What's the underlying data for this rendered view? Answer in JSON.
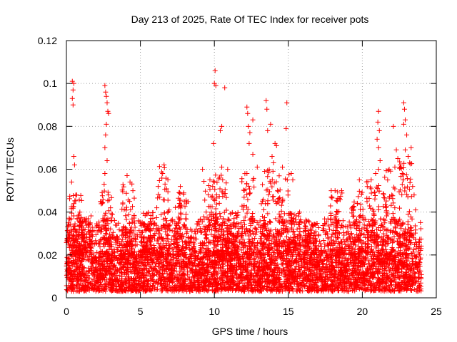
{
  "chart_data": {
    "type": "scatter",
    "title": "Day 213 of 2025, Rate Of TEC Index for receiver pots",
    "xlabel": "GPS time / hours",
    "ylabel": "ROTI / TECUs",
    "xlim": [
      0,
      25
    ],
    "ylim": [
      0,
      0.12
    ],
    "xticks": [
      0,
      5,
      10,
      15,
      20,
      25
    ],
    "xtick_labels": [
      "0",
      "5",
      "10",
      "15",
      "20",
      "25"
    ],
    "yticks": [
      0,
      0.02,
      0.04,
      0.06,
      0.08,
      0.1,
      0.12
    ],
    "ytick_labels": [
      "0",
      "0.02",
      "0.04",
      "0.06",
      "0.08",
      "0.1",
      "0.12"
    ],
    "grid": true,
    "marker": "+",
    "marker_color": "#ff0000",
    "series": [
      {
        "name": "ROTI",
        "baseline_range": [
          0.003,
          0.03
        ],
        "x_range": [
          0,
          24
        ],
        "notable_points": [
          {
            "x": 0.4,
            "y": 0.101
          },
          {
            "x": 0.5,
            "y": 0.1
          },
          {
            "x": 0.45,
            "y": 0.097
          },
          {
            "x": 0.4,
            "y": 0.093
          },
          {
            "x": 0.45,
            "y": 0.09
          },
          {
            "x": 0.5,
            "y": 0.066
          },
          {
            "x": 0.55,
            "y": 0.062
          },
          {
            "x": 0.35,
            "y": 0.054
          },
          {
            "x": 0.7,
            "y": 0.048
          },
          {
            "x": 2.6,
            "y": 0.099
          },
          {
            "x": 2.65,
            "y": 0.096
          },
          {
            "x": 2.7,
            "y": 0.094
          },
          {
            "x": 2.75,
            "y": 0.091
          },
          {
            "x": 2.8,
            "y": 0.087
          },
          {
            "x": 2.85,
            "y": 0.086
          },
          {
            "x": 2.7,
            "y": 0.081
          },
          {
            "x": 2.65,
            "y": 0.076
          },
          {
            "x": 2.6,
            "y": 0.07
          },
          {
            "x": 2.75,
            "y": 0.064
          },
          {
            "x": 2.6,
            "y": 0.058
          },
          {
            "x": 2.55,
            "y": 0.053
          },
          {
            "x": 4.1,
            "y": 0.057
          },
          {
            "x": 4.3,
            "y": 0.054
          },
          {
            "x": 6.6,
            "y": 0.062
          },
          {
            "x": 6.5,
            "y": 0.058
          },
          {
            "x": 6.2,
            "y": 0.052
          },
          {
            "x": 7.7,
            "y": 0.052
          },
          {
            "x": 9.2,
            "y": 0.06
          },
          {
            "x": 9.7,
            "y": 0.055
          },
          {
            "x": 10.05,
            "y": 0.106
          },
          {
            "x": 10.0,
            "y": 0.1
          },
          {
            "x": 10.1,
            "y": 0.099
          },
          {
            "x": 10.7,
            "y": 0.098
          },
          {
            "x": 10.5,
            "y": 0.08
          },
          {
            "x": 10.4,
            "y": 0.078
          },
          {
            "x": 9.95,
            "y": 0.072
          },
          {
            "x": 10.5,
            "y": 0.061
          },
          {
            "x": 10.9,
            "y": 0.06
          },
          {
            "x": 12.2,
            "y": 0.089
          },
          {
            "x": 12.25,
            "y": 0.086
          },
          {
            "x": 12.6,
            "y": 0.083
          },
          {
            "x": 12.3,
            "y": 0.08
          },
          {
            "x": 12.4,
            "y": 0.077
          },
          {
            "x": 12.35,
            "y": 0.072
          },
          {
            "x": 12.6,
            "y": 0.067
          },
          {
            "x": 12.9,
            "y": 0.061
          },
          {
            "x": 12.2,
            "y": 0.058
          },
          {
            "x": 13.5,
            "y": 0.092
          },
          {
            "x": 13.55,
            "y": 0.088
          },
          {
            "x": 13.8,
            "y": 0.081
          },
          {
            "x": 13.6,
            "y": 0.078
          },
          {
            "x": 14.1,
            "y": 0.072
          },
          {
            "x": 14.2,
            "y": 0.071
          },
          {
            "x": 13.9,
            "y": 0.066
          },
          {
            "x": 14.0,
            "y": 0.063
          },
          {
            "x": 13.4,
            "y": 0.059
          },
          {
            "x": 14.9,
            "y": 0.091
          },
          {
            "x": 14.85,
            "y": 0.079
          },
          {
            "x": 14.6,
            "y": 0.061
          },
          {
            "x": 15.2,
            "y": 0.058
          },
          {
            "x": 15.3,
            "y": 0.055
          },
          {
            "x": 17.9,
            "y": 0.05
          },
          {
            "x": 18.3,
            "y": 0.045
          },
          {
            "x": 18.6,
            "y": 0.05
          },
          {
            "x": 19.8,
            "y": 0.055
          },
          {
            "x": 20.6,
            "y": 0.055
          },
          {
            "x": 21.1,
            "y": 0.087
          },
          {
            "x": 21.05,
            "y": 0.082
          },
          {
            "x": 21.15,
            "y": 0.078
          },
          {
            "x": 21.0,
            "y": 0.074
          },
          {
            "x": 21.1,
            "y": 0.07
          },
          {
            "x": 21.2,
            "y": 0.064
          },
          {
            "x": 21.1,
            "y": 0.06
          },
          {
            "x": 20.9,
            "y": 0.058
          },
          {
            "x": 22.1,
            "y": 0.08
          },
          {
            "x": 22.3,
            "y": 0.069
          },
          {
            "x": 22.4,
            "y": 0.065
          },
          {
            "x": 22.2,
            "y": 0.061
          },
          {
            "x": 22.8,
            "y": 0.091
          },
          {
            "x": 22.85,
            "y": 0.088
          },
          {
            "x": 22.9,
            "y": 0.083
          },
          {
            "x": 22.8,
            "y": 0.081
          },
          {
            "x": 23.0,
            "y": 0.076
          },
          {
            "x": 22.9,
            "y": 0.069
          },
          {
            "x": 23.1,
            "y": 0.066
          },
          {
            "x": 23.2,
            "y": 0.063
          },
          {
            "x": 23.3,
            "y": 0.07
          },
          {
            "x": 22.7,
            "y": 0.058
          },
          {
            "x": 22.75,
            "y": 0.055
          },
          {
            "x": 23.4,
            "y": 0.052
          },
          {
            "x": 23.5,
            "y": 0.048
          },
          {
            "x": 23.6,
            "y": 0.041
          }
        ],
        "activity_bursts": [
          {
            "x": 0.6,
            "peak": 0.048
          },
          {
            "x": 1.3,
            "peak": 0.04
          },
          {
            "x": 2.7,
            "peak": 0.05
          },
          {
            "x": 4.2,
            "peak": 0.055
          },
          {
            "x": 5.5,
            "peak": 0.04
          },
          {
            "x": 6.5,
            "peak": 0.062
          },
          {
            "x": 7.8,
            "peak": 0.05
          },
          {
            "x": 9.7,
            "peak": 0.055
          },
          {
            "x": 10.5,
            "peak": 0.06
          },
          {
            "x": 11.2,
            "peak": 0.04
          },
          {
            "x": 12.3,
            "peak": 0.06
          },
          {
            "x": 13.6,
            "peak": 0.06
          },
          {
            "x": 14.6,
            "peak": 0.058
          },
          {
            "x": 15.4,
            "peak": 0.04
          },
          {
            "x": 16.5,
            "peak": 0.035
          },
          {
            "x": 18.3,
            "peak": 0.05
          },
          {
            "x": 19.6,
            "peak": 0.05
          },
          {
            "x": 20.7,
            "peak": 0.055
          },
          {
            "x": 21.8,
            "peak": 0.06
          },
          {
            "x": 22.9,
            "peak": 0.065
          }
        ]
      }
    ]
  }
}
